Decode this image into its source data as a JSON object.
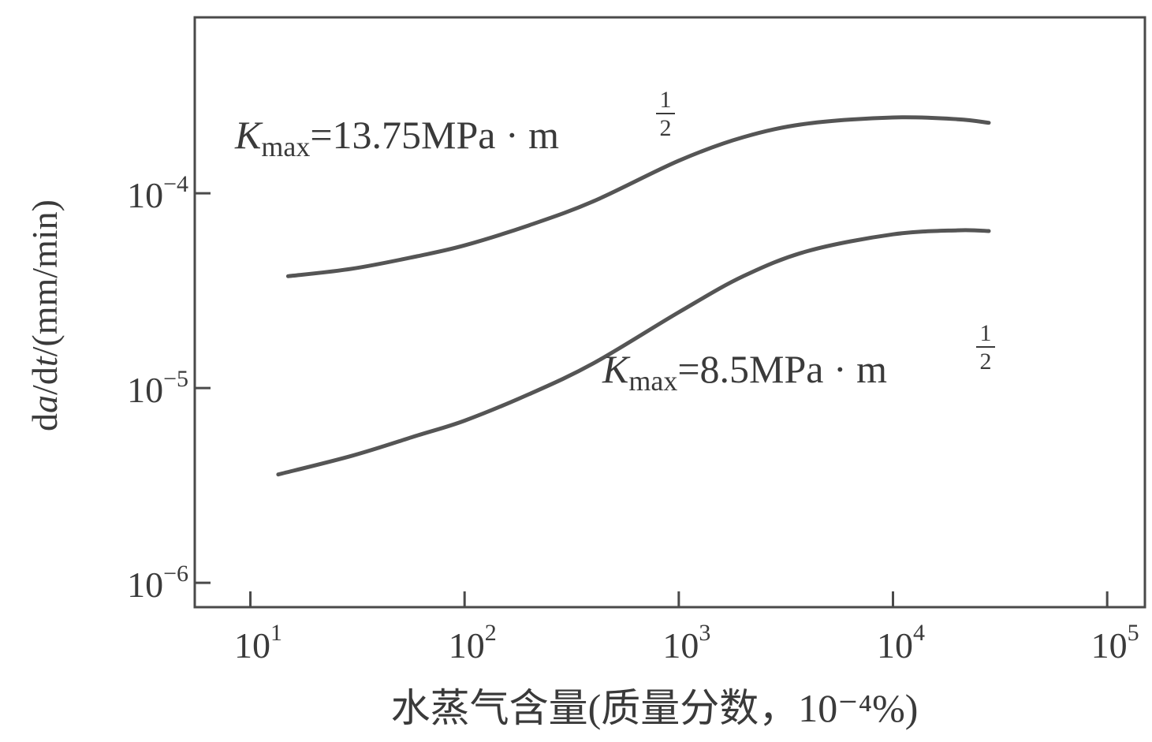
{
  "chart_data": {
    "type": "line",
    "title": "",
    "xlabel": "水蒸气含量(质量分数，10⁻⁴%)",
    "ylabel_parts": [
      "d",
      "a",
      "/d",
      "t",
      "/(mm/min)"
    ],
    "x_scale": "log",
    "y_scale": "log",
    "xlim": [
      5.5,
      150000
    ],
    "ylim": [
      7.5e-07,
      0.0008
    ],
    "x_ticks": [
      {
        "value": 10,
        "base": "10",
        "exp": "1"
      },
      {
        "value": 100,
        "base": "10",
        "exp": "2"
      },
      {
        "value": 1000,
        "base": "10",
        "exp": "3"
      },
      {
        "value": 10000,
        "base": "10",
        "exp": "4"
      },
      {
        "value": 100000,
        "base": "10",
        "exp": "5"
      }
    ],
    "y_ticks": [
      {
        "value": 1e-06,
        "base": "10",
        "exp": "−6"
      },
      {
        "value": 1e-05,
        "base": "10",
        "exp": "−5"
      },
      {
        "value": 0.0001,
        "base": "10",
        "exp": "−4"
      }
    ],
    "grid": false,
    "series": [
      {
        "label_main": "K",
        "label_sub": "max",
        "label_value": "=13.75MPa · m",
        "label_exp": "1/2",
        "x": [
          15,
          30,
          60,
          100,
          200,
          400,
          1000,
          2000,
          4000,
          10000,
          20000,
          28000
        ],
        "y": [
          3.75e-05,
          4.1e-05,
          4.75e-05,
          5.4e-05,
          6.85e-05,
          9.1e-05,
          0.000147,
          0.000194,
          0.000228,
          0.000245,
          0.00024,
          0.00023
        ],
        "color": "#555555"
      },
      {
        "label_main": "K",
        "label_sub": "max",
        "label_value": "=8.5MPa · m",
        "label_exp": "1/2",
        "x": [
          13.5,
          30,
          60,
          100,
          200,
          400,
          1000,
          2000,
          4000,
          10000,
          20000,
          28000
        ],
        "y": [
          3.6e-06,
          4.5e-06,
          5.7e-06,
          6.8e-06,
          9.3e-06,
          1.34e-05,
          2.45e-05,
          3.75e-05,
          5.05e-05,
          6.15e-05,
          6.45e-05,
          6.4e-05
        ],
        "color": "#555555"
      }
    ]
  }
}
